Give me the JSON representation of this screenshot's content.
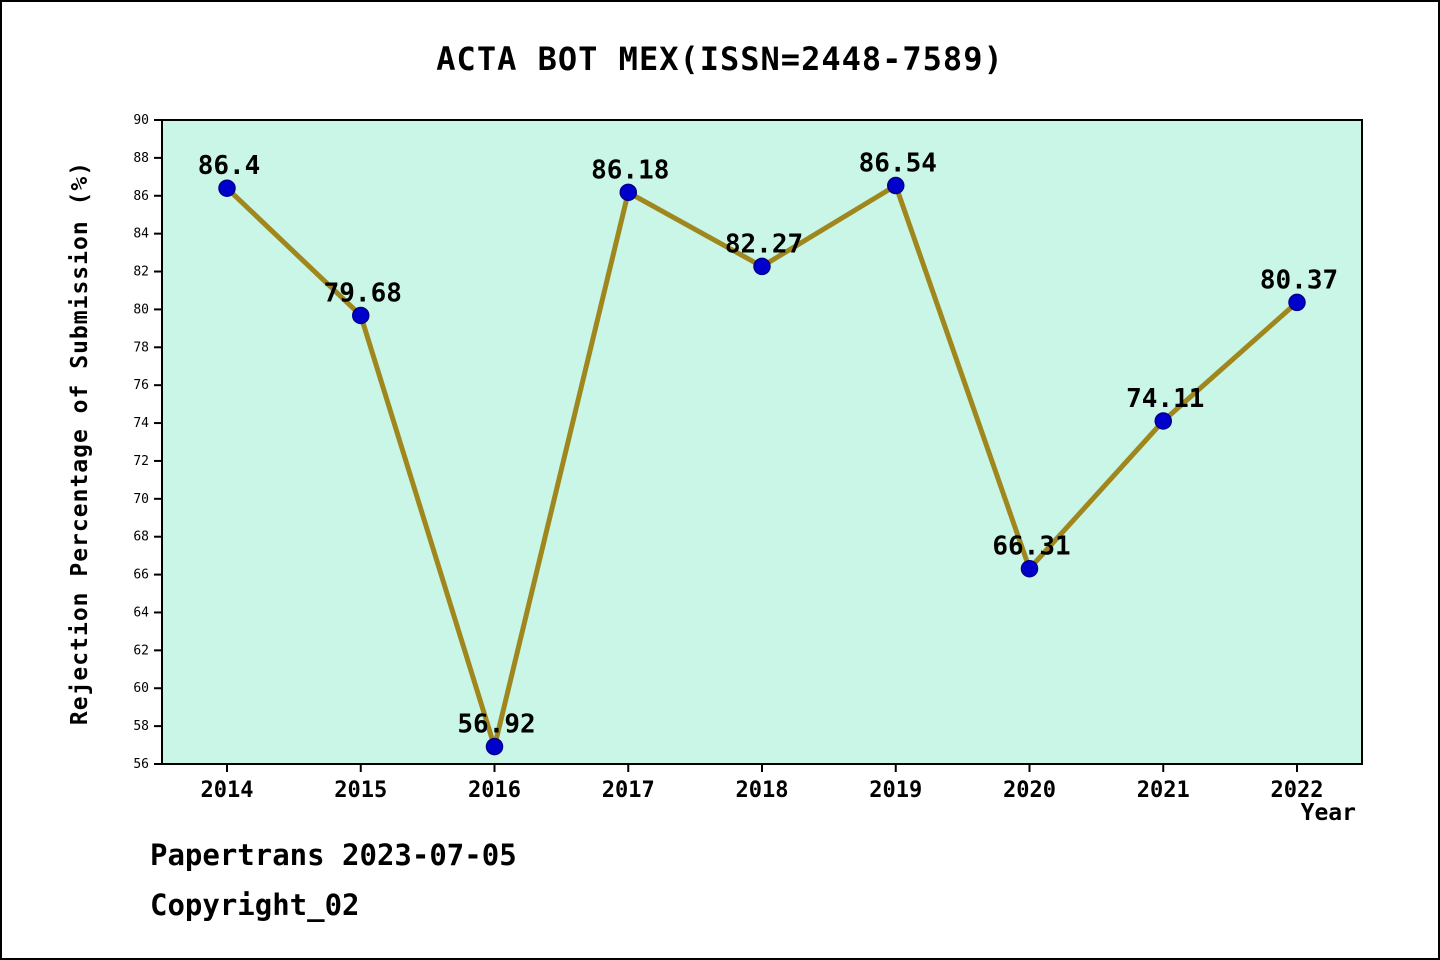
{
  "title": "ACTA BOT MEX(ISSN=2448-7589)",
  "footer": {
    "line1": "Papertrans 2023-07-05",
    "line2": "Copyright_02"
  },
  "chart_data": {
    "type": "line",
    "title": "ACTA BOT MEX(ISSN=2448-7589)",
    "xlabel": "Year",
    "ylabel": "Rejection Percentage of Submission (%)",
    "x": [
      2014,
      2015,
      2016,
      2017,
      2018,
      2019,
      2020,
      2021,
      2022
    ],
    "values": [
      86.4,
      79.68,
      56.92,
      86.18,
      82.27,
      86.54,
      66.31,
      74.11,
      80.37
    ],
    "point_labels": [
      "86.4",
      "79.68",
      "56.92",
      "86.18",
      "82.27",
      "86.54",
      "66.31",
      "74.11",
      "80.37"
    ],
    "ylim": [
      56,
      90
    ],
    "ytick_step": 2,
    "yticks": [
      56,
      58,
      60,
      62,
      64,
      66,
      68,
      70,
      72,
      74,
      76,
      78,
      80,
      82,
      84,
      86,
      88,
      90
    ],
    "xticks": [
      "2014",
      "2015",
      "2016",
      "2017",
      "2018",
      "2019",
      "2020",
      "2021",
      "2022"
    ],
    "grid": false,
    "legend": null,
    "colors": {
      "plot_bg": "#c9f6e7",
      "line": "#a0871d",
      "marker": "#0000cd",
      "marker_edge": "#00008b",
      "axis": "#000000",
      "text": "#000000"
    }
  }
}
